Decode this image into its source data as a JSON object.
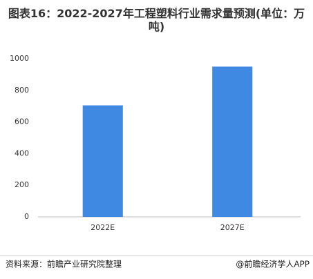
{
  "chart_data": {
    "type": "bar",
    "title": "图表16：2022-2027年工程塑料行业需求量预测(单位：万吨)",
    "categories": [
      "2022E",
      "2027E"
    ],
    "values": [
      705,
      950
    ],
    "color": "#3f89e3",
    "ylim": [
      0,
      1000
    ],
    "yticks": [
      0,
      200,
      400,
      600,
      800,
      1000
    ],
    "grid": false,
    "source": "资料来源：前瞻产业研究院整理",
    "credit": "@前瞻经济学人APP"
  }
}
